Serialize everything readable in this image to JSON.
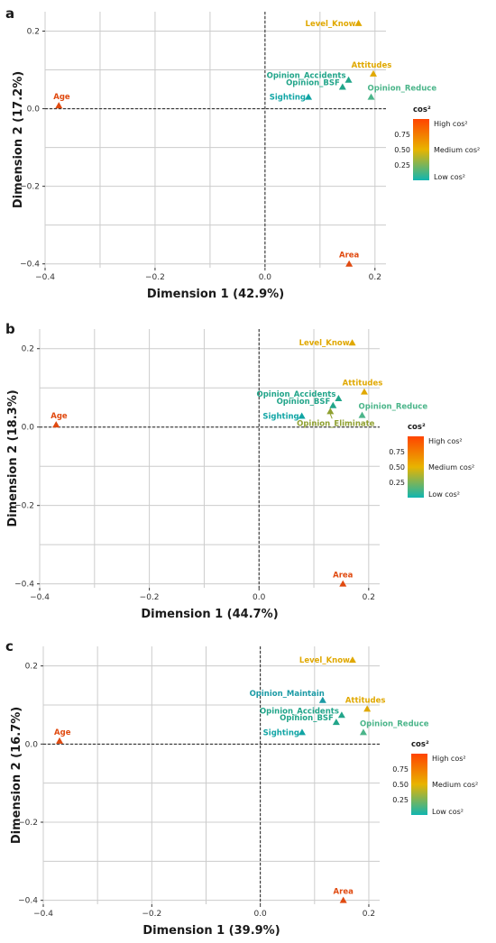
{
  "colors": {
    "grid": "#cccccc",
    "zero_line": "#222222",
    "low": "#11b5b0",
    "mid": "#e8b400",
    "high": "#ff4400"
  },
  "legend": {
    "title": "cos²",
    "high_label": "High cos²",
    "medium_label": "Medium cos²",
    "low_label": "Low cos²",
    "ticks": [
      {
        "value": 0.75,
        "label": "0.75"
      },
      {
        "value": 0.5,
        "label": "0.50"
      },
      {
        "value": 0.25,
        "label": "0.25"
      }
    ]
  },
  "chart_data": [
    {
      "type": "scatter",
      "panel": "a",
      "xlabel": "Dimension 1 (42.9%)",
      "ylabel": "Dimension 2 (17.2%)",
      "xlim": [
        -0.4,
        0.22
      ],
      "ylim": [
        -0.41,
        0.25
      ],
      "xticks": [
        {
          "v": -0.4,
          "t": "−0.4"
        },
        {
          "v": -0.2,
          "t": "−0.2"
        },
        {
          "v": 0.0,
          "t": "0.0"
        },
        {
          "v": 0.2,
          "t": "0.2"
        }
      ],
      "yticks": [
        {
          "v": 0.2,
          "t": "0.2"
        },
        {
          "v": 0.0,
          "t": "0.0"
        },
        {
          "v": -0.2,
          "t": "−0.2"
        },
        {
          "v": -0.4,
          "t": "−0.4"
        }
      ],
      "minor_x": [
        -0.3,
        -0.1,
        0.1
      ],
      "minor_y": [
        0.1,
        -0.1,
        -0.3
      ],
      "points": [
        {
          "label": "Level_Know",
          "x": 0.17,
          "y": 0.22,
          "color": "#e0a800"
        },
        {
          "label": "Attitudes",
          "x": 0.197,
          "y": 0.09,
          "color": "#e0a800"
        },
        {
          "label": "Opinion_Accidents",
          "x": 0.152,
          "y": 0.074,
          "color": "#22a58a"
        },
        {
          "label": "Opinion_BSF",
          "x": 0.141,
          "y": 0.056,
          "color": "#22a58a"
        },
        {
          "label": "Sighting",
          "x": 0.079,
          "y": 0.03,
          "color": "#11a5a5"
        },
        {
          "label": "Opinion_Reduce",
          "x": 0.193,
          "y": 0.03,
          "color": "#4bb58a"
        },
        {
          "label": "Age",
          "x": -0.375,
          "y": 0.008,
          "color": "#e04a10"
        },
        {
          "label": "Area",
          "x": 0.153,
          "y": -0.4,
          "color": "#e04a10"
        }
      ]
    },
    {
      "type": "scatter",
      "panel": "b",
      "xlabel": "Dimension 1 (44.7%)",
      "ylabel": "Dimension 2 (18.3%)",
      "xlim": [
        -0.4,
        0.22
      ],
      "ylim": [
        -0.41,
        0.25
      ],
      "xticks": [
        {
          "v": -0.4,
          "t": "−0.4"
        },
        {
          "v": -0.2,
          "t": "−0.2"
        },
        {
          "v": 0.0,
          "t": "0.0"
        },
        {
          "v": 0.2,
          "t": "0.2"
        }
      ],
      "yticks": [
        {
          "v": 0.2,
          "t": "0.2"
        },
        {
          "v": 0.0,
          "t": "0.0"
        },
        {
          "v": -0.2,
          "t": "−0.2"
        },
        {
          "v": -0.4,
          "t": "−0.4"
        }
      ],
      "minor_x": [
        -0.3,
        -0.1,
        0.1
      ],
      "minor_y": [
        0.1,
        -0.1,
        -0.3
      ],
      "points": [
        {
          "label": "Level_Know",
          "x": 0.17,
          "y": 0.215,
          "color": "#e0a800"
        },
        {
          "label": "Attitudes",
          "x": 0.192,
          "y": 0.09,
          "color": "#e0a800"
        },
        {
          "label": "Opinion_Accidents",
          "x": 0.145,
          "y": 0.073,
          "color": "#22a58a"
        },
        {
          "label": "Opinion_BSF",
          "x": 0.135,
          "y": 0.055,
          "color": "#22a58a"
        },
        {
          "label": "Sighting",
          "x": 0.078,
          "y": 0.028,
          "color": "#11a5a5"
        },
        {
          "label": "Opinion_Reduce",
          "x": 0.188,
          "y": 0.03,
          "color": "#4bb58a"
        },
        {
          "label": "Opinion_Eliminate",
          "x": 0.13,
          "y": 0.04,
          "color": "#8fa030"
        },
        {
          "label": "Age",
          "x": -0.37,
          "y": 0.006,
          "color": "#e04a10"
        },
        {
          "label": "Area",
          "x": 0.153,
          "y": -0.4,
          "color": "#e04a10"
        }
      ]
    },
    {
      "type": "scatter",
      "panel": "c",
      "xlabel": "Dimension 1 (39.9%)",
      "ylabel": "Dimension 2 (16.7%)",
      "xlim": [
        -0.4,
        0.22
      ],
      "ylim": [
        -0.41,
        0.25
      ],
      "xticks": [
        {
          "v": -0.4,
          "t": "−0.4"
        },
        {
          "v": -0.2,
          "t": "−0.2"
        },
        {
          "v": 0.0,
          "t": "0.0"
        },
        {
          "v": 0.2,
          "t": "0.2"
        }
      ],
      "yticks": [
        {
          "v": 0.2,
          "t": "0.2"
        },
        {
          "v": 0.0,
          "t": "0.0"
        },
        {
          "v": -0.2,
          "t": "−0.2"
        },
        {
          "v": -0.4,
          "t": "−0.4"
        }
      ],
      "minor_x": [
        -0.3,
        -0.1,
        0.1
      ],
      "minor_y": [
        0.1,
        -0.1,
        -0.3
      ],
      "points": [
        {
          "label": "Level_Know",
          "x": 0.17,
          "y": 0.215,
          "color": "#e0a800"
        },
        {
          "label": "Opinion_Maintain",
          "x": 0.115,
          "y": 0.112,
          "color": "#1a9aa5"
        },
        {
          "label": "Attitudes",
          "x": 0.197,
          "y": 0.09,
          "color": "#e0a800"
        },
        {
          "label": "Opinion_Accidents",
          "x": 0.15,
          "y": 0.074,
          "color": "#22a58a"
        },
        {
          "label": "Opinion_BSF",
          "x": 0.14,
          "y": 0.056,
          "color": "#22a58a"
        },
        {
          "label": "Sighting",
          "x": 0.077,
          "y": 0.03,
          "color": "#11a5a5"
        },
        {
          "label": "Opinion_Reduce",
          "x": 0.19,
          "y": 0.03,
          "color": "#4bb58a"
        },
        {
          "label": "Age",
          "x": -0.37,
          "y": 0.008,
          "color": "#e04a10"
        },
        {
          "label": "Area",
          "x": 0.153,
          "y": -0.4,
          "color": "#e04a10"
        }
      ]
    }
  ]
}
